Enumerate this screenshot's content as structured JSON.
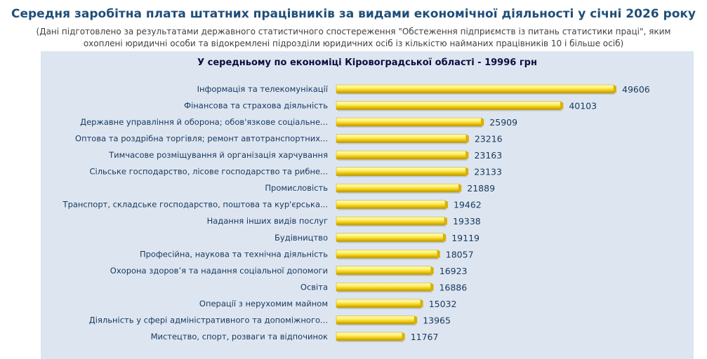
{
  "title": "Середня заробітна плата штатних працівників за видами економічної діяльності у січні 2026 року",
  "subtitle": "(Дані підготовлено за результатами державного статистичного спостереження \"Обстеження підприємств із питань статистики праці\", яким охоплені юридичні особи та відокремлені підрозділи юридичних осіб із кількістю найманих працівників 10 і більше осіб)",
  "average_line": "У середньому по економіці Кіровоградської області - 19996  грн",
  "colors": {
    "bar_light": "#fff27a",
    "bar_main": "#f2cc0c",
    "bar_dark": "#b8930a",
    "panel": "#dde6f0",
    "title": "#1f4e79"
  },
  "chart_data": {
    "type": "bar",
    "orientation": "horizontal",
    "categories": [
      "Інформація та телекомунікації",
      "Фінансова та страхова діяльність",
      "Державне управління й оборона; обов'язкове соціальне...",
      "Оптова та роздрібна торгівля; ремонт автотранспортних...",
      "Тимчасове розміщування й організація харчування",
      "Сільське господарство, лісове господарство та рибне...",
      "Промисловість",
      "Транспорт, складське господарство, поштова та кур'єрська...",
      "Надання інших видів послуг",
      "Будівництво",
      "Професійна, наукова та технічна діяльність",
      "Охорона здоров’я та надання соціальної допомоги",
      "Освіта",
      "Операції з нерухомим майном",
      "Діяльність у сфері адміністративного та допоміжного...",
      "Мистецтво, спорт, розваги та відпочинок"
    ],
    "values": [
      49606,
      40103,
      25909,
      23216,
      23163,
      23133,
      21889,
      19462,
      19338,
      19119,
      18057,
      16923,
      16886,
      15032,
      13965,
      11767
    ],
    "xlim": [
      0,
      49606
    ],
    "grid": false,
    "legend": "none"
  }
}
